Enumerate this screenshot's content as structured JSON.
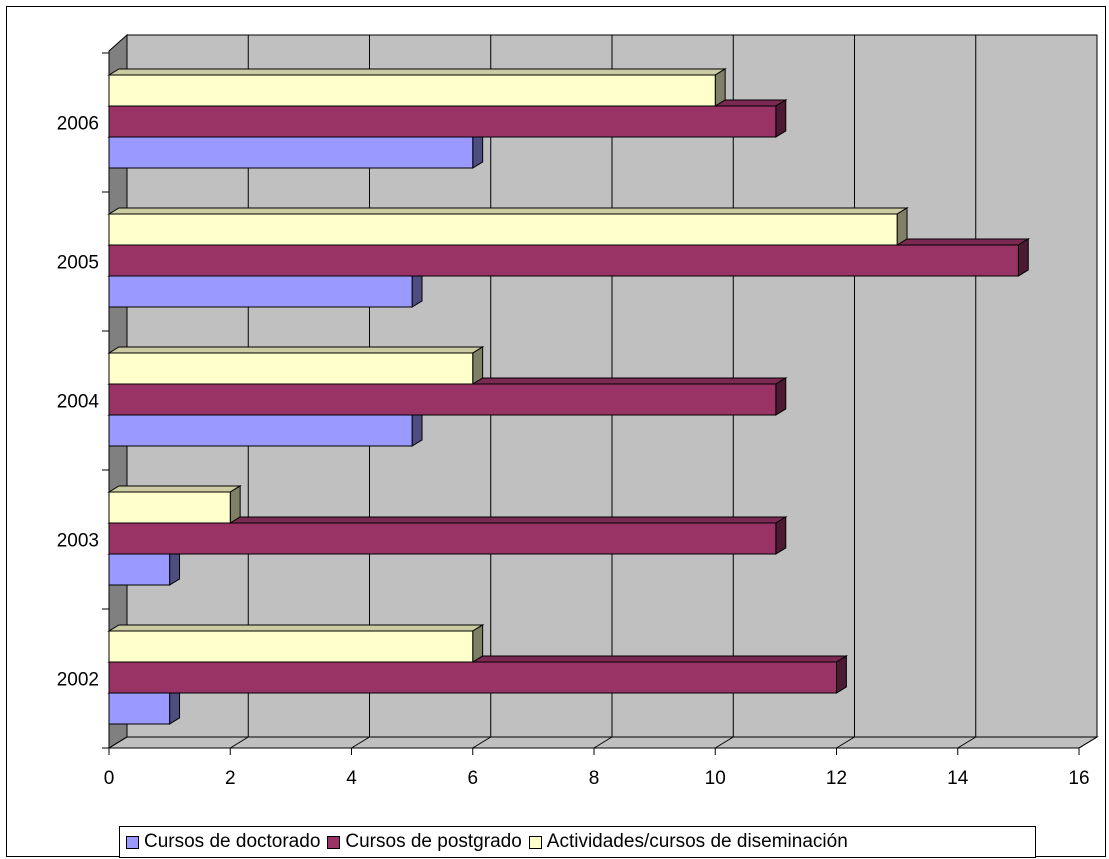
{
  "chart_data": {
    "type": "bar",
    "orientation": "horizontal",
    "style": "3d-clustered",
    "title": "",
    "xlabel": "",
    "ylabel": "",
    "categories": [
      "2002",
      "2003",
      "2004",
      "2005",
      "2006"
    ],
    "series": [
      {
        "name": "Cursos de doctorado",
        "values": [
          1,
          1,
          5,
          5,
          6
        ],
        "color": "#9999FF"
      },
      {
        "name": "Cursos de postgrado",
        "values": [
          12,
          11,
          11,
          15,
          11
        ],
        "color": "#993366"
      },
      {
        "name": "Actividades/cursos de diseminación",
        "values": [
          6,
          2,
          6,
          13,
          10
        ],
        "color": "#FFFFCC"
      }
    ],
    "xlim": [
      0,
      16
    ],
    "x_ticks": [
      "0",
      "2",
      "4",
      "6",
      "8",
      "10",
      "12",
      "14",
      "16"
    ],
    "grid": true,
    "legend_position": "bottom",
    "wall_color": "#C0C0C0"
  }
}
